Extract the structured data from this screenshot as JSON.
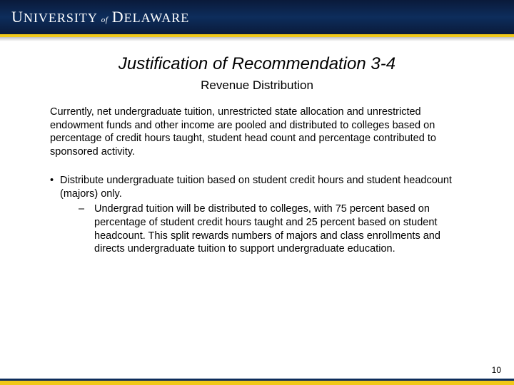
{
  "header": {
    "logo_html": "UNIVERSITY of DELAWARE"
  },
  "title": "Justification of Recommendation 3-4",
  "subtitle": "Revenue Distribution",
  "paragraph": "Currently, net undergraduate tuition, unrestricted state allocation and unrestricted endowment funds and other income are pooled and distributed to colleges based on percentage of credit hours taught, student head count and percentage contributed to sponsored activity.",
  "bullet": {
    "main": "Distribute undergraduate tuition based on student credit hours and student headcount (majors) only.",
    "sub": "Undergrad tuition will be distributed to colleges, with 75 percent based on percentage of student credit hours taught and 25 percent based on student headcount. This split rewards numbers of majors and class enrollments and directs undergraduate tuition to support undergraduate education."
  },
  "page_number": "10",
  "colors": {
    "header_bg": "#0d2d5c",
    "accent": "#f0c818"
  }
}
